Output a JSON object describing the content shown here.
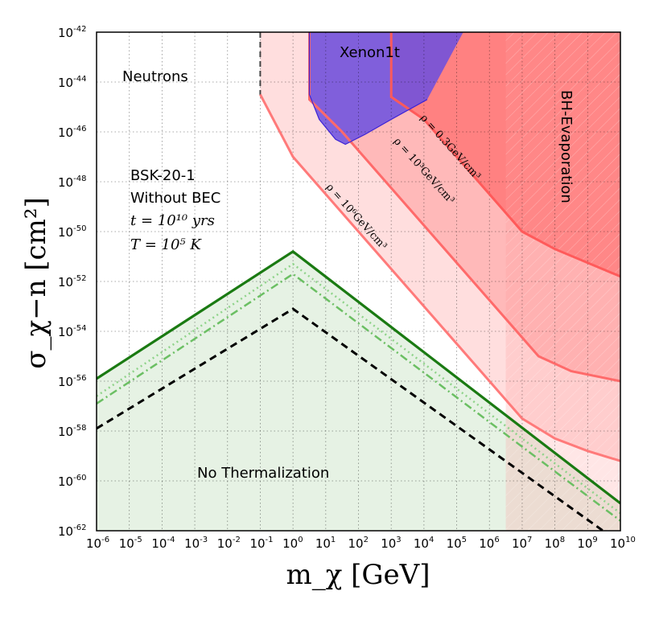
{
  "chart_data": {
    "type": "line",
    "xlabel": "m_χ [GeV]",
    "ylabel": "σ_χ−n [cm²]",
    "xscale": "log10",
    "yscale": "log10",
    "xlim_log10": [
      -6,
      10
    ],
    "ylim_log10": [
      -62,
      -42
    ],
    "x_ticks": [
      {
        "base": "10",
        "exp": "-6"
      },
      {
        "base": "10",
        "exp": "-5"
      },
      {
        "base": "10",
        "exp": "-4"
      },
      {
        "base": "10",
        "exp": "-3"
      },
      {
        "base": "10",
        "exp": "-2"
      },
      {
        "base": "10",
        "exp": "-1"
      },
      {
        "base": "10",
        "exp": "0"
      },
      {
        "base": "10",
        "exp": "1"
      },
      {
        "base": "10",
        "exp": "2"
      },
      {
        "base": "10",
        "exp": "3"
      },
      {
        "base": "10",
        "exp": "4"
      },
      {
        "base": "10",
        "exp": "5"
      },
      {
        "base": "10",
        "exp": "6"
      },
      {
        "base": "10",
        "exp": "7"
      },
      {
        "base": "10",
        "exp": "8"
      },
      {
        "base": "10",
        "exp": "9"
      },
      {
        "base": "10",
        "exp": "10"
      }
    ],
    "y_ticks": [
      {
        "base": "10",
        "exp": "-62"
      },
      {
        "base": "10",
        "exp": "-60"
      },
      {
        "base": "10",
        "exp": "-58"
      },
      {
        "base": "10",
        "exp": "-56"
      },
      {
        "base": "10",
        "exp": "-54"
      },
      {
        "base": "10",
        "exp": "-52"
      },
      {
        "base": "10",
        "exp": "-50"
      },
      {
        "base": "10",
        "exp": "-48"
      },
      {
        "base": "10",
        "exp": "-46"
      },
      {
        "base": "10",
        "exp": "-44"
      },
      {
        "base": "10",
        "exp": "-42"
      }
    ],
    "grid": true,
    "regions": [
      {
        "name": "rho-1e6",
        "label": "ρ = 10⁶GeV/cm³",
        "fill": "#ffdada",
        "points": [
          [
            -1,
            -42
          ],
          [
            -1,
            -44.5
          ],
          [
            0,
            -47
          ],
          [
            1,
            -48.5
          ],
          [
            2,
            -50
          ],
          [
            3,
            -51.5
          ],
          [
            4,
            -53
          ],
          [
            5,
            -54.5
          ],
          [
            6,
            -56
          ],
          [
            7,
            -57.5
          ],
          [
            8,
            -58.3
          ],
          [
            9,
            -58.8
          ],
          [
            10,
            -59.2
          ],
          [
            10,
            -42
          ]
        ]
      },
      {
        "name": "rho-1e3",
        "label": "ρ = 10³GeV/cm³",
        "fill": "#ffb5b5",
        "points": [
          [
            0.5,
            -42
          ],
          [
            0.5,
            -44.7
          ],
          [
            1.5,
            -46
          ],
          [
            2.5,
            -47.5
          ],
          [
            3.5,
            -49
          ],
          [
            4.5,
            -50.5
          ],
          [
            5.5,
            -52
          ],
          [
            6.5,
            -53.5
          ],
          [
            7.5,
            -55
          ],
          [
            8.5,
            -55.6
          ],
          [
            10,
            -56
          ],
          [
            10,
            -42
          ]
        ]
      },
      {
        "name": "rho-0.3",
        "label": "ρ = 0.3GeV/cm³",
        "fill": "#ff7b7b",
        "points": [
          [
            3,
            -42
          ],
          [
            3,
            -44.6
          ],
          [
            4,
            -45.5
          ],
          [
            5,
            -47
          ],
          [
            6,
            -48.5
          ],
          [
            7,
            -50
          ],
          [
            8,
            -50.7
          ],
          [
            10,
            -51.8
          ],
          [
            10,
            -42
          ]
        ]
      },
      {
        "name": "xenon1t",
        "label": "Xenon1t",
        "fill": "#6a4fe0",
        "points": [
          [
            0.5,
            -42
          ],
          [
            0.5,
            -44.5
          ],
          [
            0.8,
            -45.5
          ],
          [
            1.3,
            -46.3
          ],
          [
            1.6,
            -46.5
          ],
          [
            2.2,
            -46.1
          ],
          [
            3,
            -45.5
          ],
          [
            4.1,
            -44.7
          ],
          [
            5.2,
            -42
          ]
        ]
      }
    ],
    "bh_evaporation": {
      "label": "BH-Evaporation",
      "x_start_log10": 6.5,
      "x_end_log10": 10
    },
    "series": [
      {
        "name": "without-bec-solid",
        "style": "solid",
        "color": "#1a7a12",
        "x": [
          -6,
          0,
          10
        ],
        "y": [
          -55.9,
          -50.8,
          -60.9
        ]
      },
      {
        "name": "dotted",
        "style": "dotted",
        "color": "#8fd38a",
        "x": [
          -6,
          0,
          10
        ],
        "y": [
          -56.6,
          -51.3,
          -61.3
        ]
      },
      {
        "name": "dashdot",
        "style": "dashdot",
        "color": "#6bbf63",
        "x": [
          -6,
          0,
          10
        ],
        "y": [
          -56.9,
          -51.7,
          -61.6
        ]
      },
      {
        "name": "dashed",
        "style": "dashed",
        "color": "#000000",
        "x": [
          -6,
          0,
          10
        ],
        "y": [
          -57.9,
          -53.1,
          -62.5
        ]
      }
    ],
    "no_thermalization_fill": "#e6f2e4",
    "boundary_curves": [
      {
        "name": "rho-1e6-boundary",
        "color": "#444444",
        "style": "dashed"
      },
      {
        "name": "rho-1e3-boundary",
        "color": "#ff6a6a",
        "style": "solid"
      },
      {
        "name": "rho-0.3-boundary",
        "color": "#ff5a5a",
        "style": "solid"
      }
    ],
    "annotations": {
      "neutrons": "Neutrons",
      "xenon": "Xenon1t",
      "bh": "BH-Evaporation",
      "model": "BSK-20-1",
      "bec": "Without BEC",
      "time": "t = 10¹⁰ yrs",
      "temp": "T = 10⁵ K",
      "no_therm": "No Thermalization",
      "rho_03": "ρ = 0.3GeV/cm³",
      "rho_1e3": "ρ = 10³GeV/cm³",
      "rho_1e6": "ρ = 10⁶GeV/cm³"
    }
  }
}
